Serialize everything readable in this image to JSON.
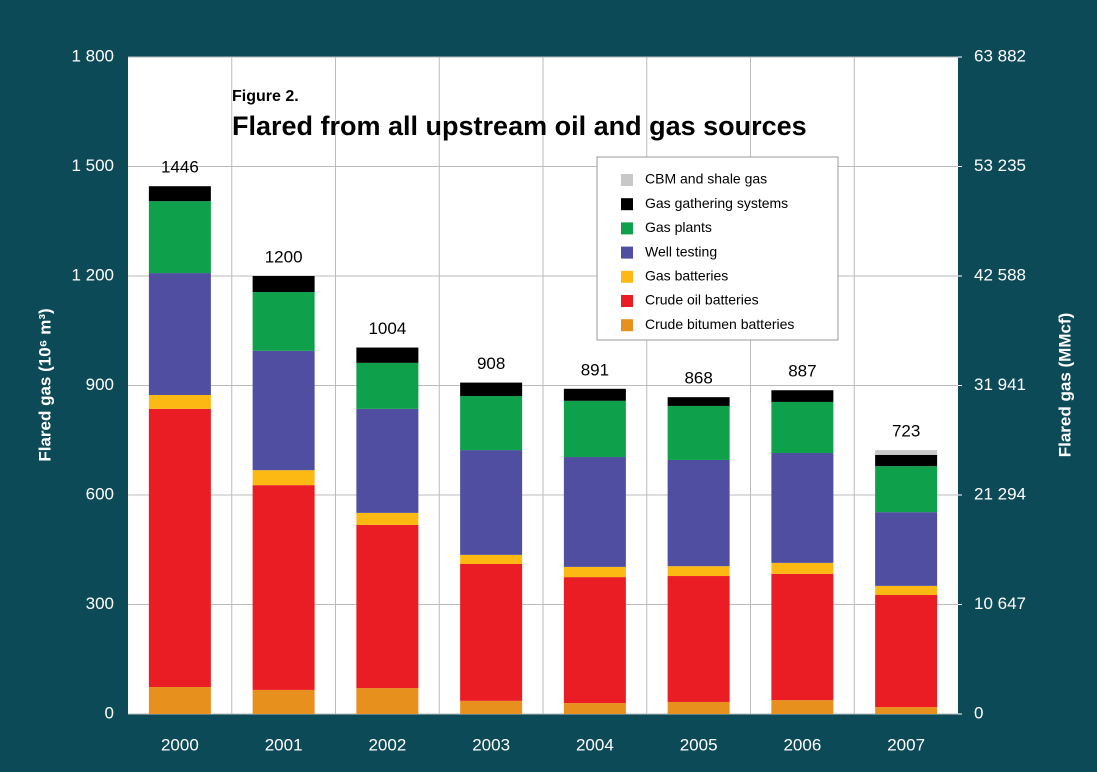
{
  "chart_data": {
    "type": "stacked_bar",
    "subtitle": "Figure 2.",
    "title": "Flared from all upstream oil and gas sources",
    "y_label": "Flared gas (10⁶ m³)",
    "y2_label": "Flared gas (MMcf)",
    "categories": [
      "2000",
      "2001",
      "2002",
      "2003",
      "2004",
      "2005",
      "2006",
      "2007"
    ],
    "series": [
      {
        "name": "Crude bitumen batteries",
        "color": "#e8901e",
        "values": [
          74,
          66,
          71,
          36,
          30,
          33,
          38,
          19
        ]
      },
      {
        "name": "Crude oil batteries",
        "color": "#ea1c24",
        "values": [
          762,
          561,
          447,
          375,
          345,
          345,
          346,
          307
        ]
      },
      {
        "name": "Gas batteries",
        "color": "#fdb913",
        "values": [
          38,
          41,
          33,
          25,
          28,
          27,
          30,
          25
        ]
      },
      {
        "name": "Well testing",
        "color": "#4f4ea0",
        "values": [
          334,
          327,
          285,
          287,
          301,
          291,
          301,
          202
        ]
      },
      {
        "name": "Gas plants",
        "color": "#0ea04b",
        "values": [
          197,
          161,
          126,
          148,
          154,
          148,
          140,
          126
        ]
      },
      {
        "name": "Gas gathering systems",
        "color": "#000000",
        "values": [
          41,
          44,
          42,
          37,
          33,
          24,
          32,
          31
        ]
      },
      {
        "name": "CBM and shale gas",
        "color": "#c8c8c8",
        "values": [
          0,
          0,
          0,
          0,
          0,
          0,
          0,
          13
        ]
      }
    ],
    "totals": [
      1446,
      1200,
      1004,
      908,
      891,
      868,
      887,
      723
    ],
    "ylim": [
      0,
      1800
    ],
    "yticks": [
      0,
      300,
      600,
      900,
      {
        "value": 1200,
        "label": "1 200"
      },
      {
        "value": 1500,
        "label": "1 500"
      },
      {
        "value": 1800,
        "label": "1 800"
      }
    ],
    "y2lim": [
      0,
      63882
    ],
    "y2ticks": [
      0,
      {
        "value": 10647,
        "label": "10 647"
      },
      {
        "value": 21294,
        "label": "21 294"
      },
      {
        "value": 31941,
        "label": "31 941"
      },
      {
        "value": 42588,
        "label": "42 588"
      },
      {
        "value": 53235,
        "label": "53 235"
      },
      {
        "value": 63882,
        "label": "63 882"
      }
    ],
    "grid": true
  }
}
